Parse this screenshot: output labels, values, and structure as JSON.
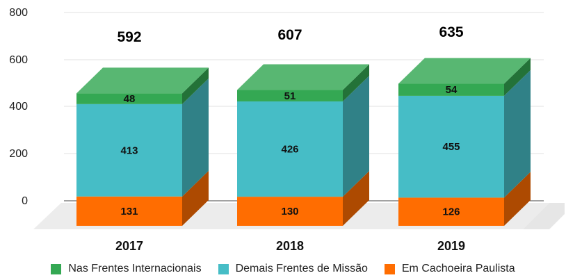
{
  "chart_data": {
    "type": "bar",
    "stacked": true,
    "style": "3d",
    "categories": [
      "2017",
      "2018",
      "2019"
    ],
    "series": [
      {
        "name": "Em Cachoeira Paulista",
        "values": [
          131,
          130,
          126
        ],
        "color": "#ff6d01"
      },
      {
        "name": "Demais Frentes de Missão",
        "values": [
          413,
          426,
          455
        ],
        "color": "#46bdc6"
      },
      {
        "name": "Nas Frentes Internacionais",
        "values": [
          48,
          51,
          54
        ],
        "color": "#34a853"
      }
    ],
    "totals": [
      592,
      607,
      635
    ],
    "ylim": [
      0,
      800
    ],
    "yticks": [
      0,
      200,
      400,
      600,
      800
    ],
    "grid": true,
    "legend_position": "bottom"
  },
  "legend": [
    {
      "label": "Nas Frentes Internacionais",
      "color": "#34a853"
    },
    {
      "label": "Demais Frentes de Missão",
      "color": "#46bdc6"
    },
    {
      "label": "Em Cachoeira Paulista",
      "color": "#ff6d01"
    }
  ]
}
